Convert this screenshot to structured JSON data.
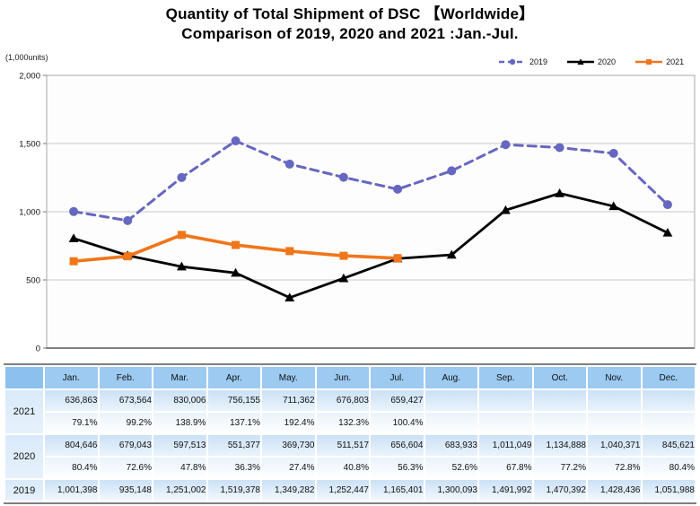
{
  "header": {
    "title": "Quantity of Total Shipment of DSC 【Worldwide】",
    "subtitle": "Comparison of 2019, 2020 and 2021 :Jan.-Jul."
  },
  "chart_data": {
    "type": "line",
    "title": "Quantity of Total Shipment of DSC 【Worldwide】",
    "subtitle": "Comparison of 2019, 2020 and 2021 :Jan.-Jul.",
    "unit_label": "(1,000units)",
    "categories": [
      "Jan.",
      "Feb.",
      "Mar.",
      "Apr.",
      "May.",
      "Jun.",
      "Jul.",
      "Aug.",
      "Sep.",
      "Oct.",
      "Nov.",
      "Dec."
    ],
    "ylabel": "",
    "xlabel": "",
    "ylim": [
      0,
      2000
    ],
    "ytick_interval": 500,
    "ytick_labels": [
      "0",
      "500",
      "1,000",
      "1,500",
      "2,000"
    ],
    "grid": true,
    "legend_position": "top-right",
    "series": [
      {
        "name": "2019",
        "color": "#6667C0",
        "style": "dashed",
        "marker": "circle",
        "line_width": 3,
        "values": [
          1001.398,
          935.148,
          1251.002,
          1519.378,
          1349.282,
          1252.447,
          1165.401,
          1300.093,
          1491.992,
          1470.392,
          1428.436,
          1051.988
        ]
      },
      {
        "name": "2020",
        "color": "#000000",
        "style": "solid",
        "marker": "triangle",
        "line_width": 2.8,
        "values": [
          804.646,
          679.043,
          597.513,
          551.377,
          369.73,
          511.517,
          656.604,
          683.933,
          1011.049,
          1134.888,
          1040.371,
          845.621
        ]
      },
      {
        "name": "2021",
        "color": "#F0761B",
        "style": "solid",
        "marker": "square",
        "line_width": 3.6,
        "values": [
          636.863,
          673.564,
          830.006,
          756.155,
          711.362,
          676.803,
          659.427,
          null,
          null,
          null,
          null,
          null
        ]
      }
    ]
  },
  "table": {
    "columns": [
      "Jan.",
      "Feb.",
      "Mar.",
      "Apr.",
      "May.",
      "Jun.",
      "Jul.",
      "Aug.",
      "Sep.",
      "Oct.",
      "Nov.",
      "Dec."
    ],
    "row_groups": [
      {
        "year": "2021",
        "values": [
          "636,863",
          "673,564",
          "830,006",
          "756,155",
          "711,362",
          "676,803",
          "659,427",
          "",
          "",
          "",
          "",
          ""
        ],
        "pcts": [
          "79.1%",
          "99.2%",
          "138.9%",
          "137.1%",
          "192.4%",
          "132.3%",
          "100.4%",
          "",
          "",
          "",
          "",
          ""
        ]
      },
      {
        "year": "2020",
        "values": [
          "804,646",
          "679,043",
          "597,513",
          "551,377",
          "369,730",
          "511,517",
          "656,604",
          "683,933",
          "1,011,049",
          "1,134,888",
          "1,040,371",
          "845,621"
        ],
        "pcts": [
          "80.4%",
          "72.6%",
          "47.8%",
          "36.3%",
          "27.4%",
          "40.8%",
          "56.3%",
          "52.6%",
          "67.8%",
          "77.2%",
          "72.8%",
          "80.4%"
        ]
      },
      {
        "year": "2019",
        "values": [
          "1,001,398",
          "935,148",
          "1,251,002",
          "1,519,378",
          "1,349,282",
          "1,252,447",
          "1,165,401",
          "1,300,093",
          "1,491,992",
          "1,470,392",
          "1,428,436",
          "1,051,988"
        ],
        "pcts": null
      }
    ]
  }
}
